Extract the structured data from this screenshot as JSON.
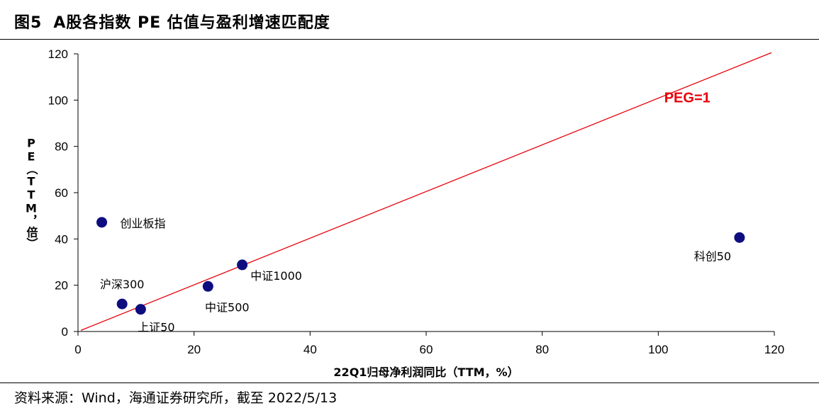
{
  "figure": {
    "number": "图5",
    "title": "A股各指数 PE 估值与盈利增速匹配度"
  },
  "source": "资料来源：Wind，海通证券研究所，截至 2022/5/13",
  "colors": {
    "point": "#0d0d80",
    "line": "#e8000b",
    "axis": "#000000"
  },
  "chart_data": {
    "type": "scatter",
    "xlabel": "22Q1归母净利润同比（TTM，%）",
    "ylabel": "PE（TTM，倍）",
    "xlim": [
      0,
      120
    ],
    "ylim": [
      0,
      120
    ],
    "xticks": [
      0,
      20,
      40,
      60,
      80,
      100,
      120
    ],
    "yticks": [
      0,
      20,
      40,
      60,
      80,
      100,
      120
    ],
    "grid": false,
    "points": [
      {
        "label": "创业板指",
        "x": 4.1,
        "y": 47.2
      },
      {
        "label": "沪深300",
        "x": 7.6,
        "y": 11.9
      },
      {
        "label": "上证50",
        "x": 10.8,
        "y": 9.6
      },
      {
        "label": "中证500",
        "x": 22.4,
        "y": 19.5
      },
      {
        "label": "中证1000",
        "x": 28.3,
        "y": 28.8
      },
      {
        "label": "科创50",
        "x": 114.0,
        "y": 40.6
      }
    ],
    "reference_line": {
      "label": "PEG=1",
      "x": [
        0.5,
        119.5
      ],
      "y": [
        0.5,
        120.5
      ]
    }
  }
}
